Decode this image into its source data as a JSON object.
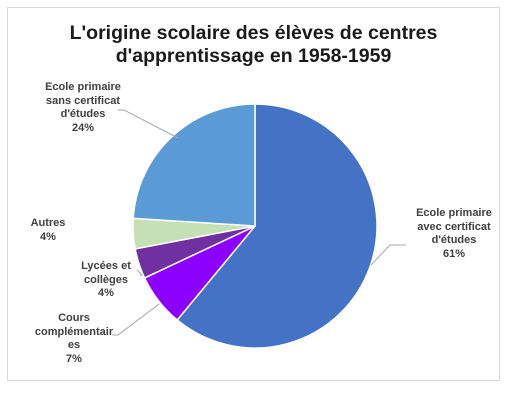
{
  "chart_data": {
    "type": "pie",
    "title_lines": [
      "L'origine scolaire des élèves de centres",
      "d'apprentissage en 1958-1959"
    ],
    "slices": [
      {
        "label_lines": [
          "Ecole primaire",
          "avec certificat",
          "d'études"
        ],
        "value": 61,
        "pct_label": "61%",
        "color": "#4472c4"
      },
      {
        "label_lines": [
          "Cours",
          "complémentair",
          "es"
        ],
        "value": 7,
        "pct_label": "7%",
        "color": "#8b00ff"
      },
      {
        "label_lines": [
          "Lycées et",
          "collèges"
        ],
        "value": 4,
        "pct_label": "4%",
        "color": "#7030a0"
      },
      {
        "label_lines": [
          "Autres"
        ],
        "value": 4,
        "pct_label": "4%",
        "color": "#c5e0b4"
      },
      {
        "label_lines": [
          "Ecole primaire",
          "sans certificat",
          "d'études"
        ],
        "value": 24,
        "pct_label": "24%",
        "color": "#5b9bd5"
      }
    ]
  }
}
